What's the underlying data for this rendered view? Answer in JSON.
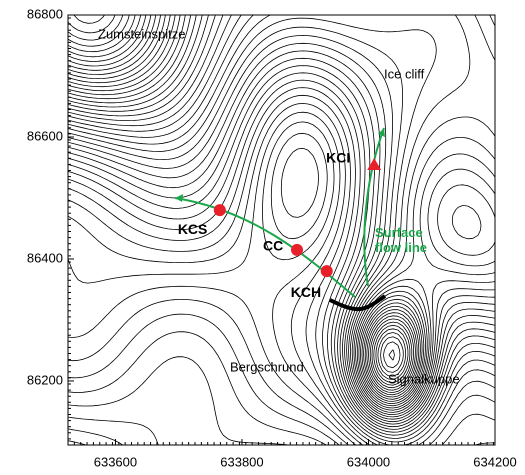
{
  "map": {
    "xlim": [
      633525,
      634200
    ],
    "ylim": [
      86095,
      86800
    ],
    "xticks": [
      633600,
      633800,
      634000,
      634200
    ],
    "yticks": [
      86200,
      86400,
      86600,
      86800
    ],
    "places": [
      "Zumsteinspitze",
      "Ice cliff",
      "Bergschrund",
      "Signalkuppe"
    ],
    "flow_label": "Surface flow line",
    "points": [
      {
        "name": "KCS",
        "x": 633765,
        "y": 86480,
        "marker": "circle"
      },
      {
        "name": "CC",
        "x": 633887,
        "y": 86415,
        "marker": "circle"
      },
      {
        "name": "KCH",
        "x": 633934,
        "y": 86380,
        "marker": "circle"
      },
      {
        "name": "KCI",
        "x": 634009,
        "y": 86554,
        "marker": "triangle"
      }
    ],
    "marker_color": "#e8202a",
    "flow_color": "#1aa64a"
  }
}
